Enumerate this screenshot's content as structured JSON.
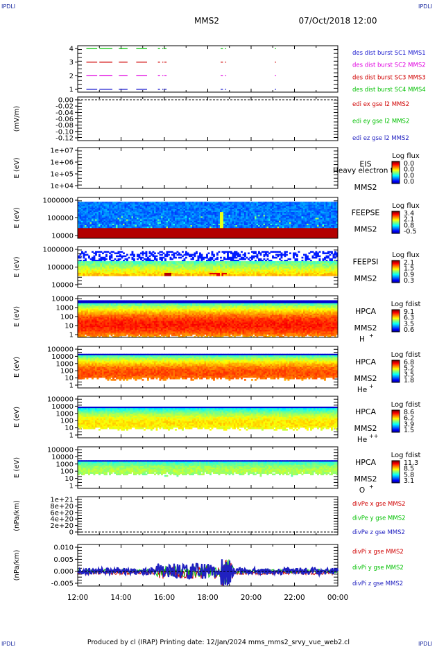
{
  "corner_label": "IPDLI",
  "header": {
    "spacecraft": "MMS2",
    "datetime": "07/Oct/2018 12:00"
  },
  "footer": {
    "text": "Produced by cl (IRAP)   Printing date: 12/Jan/2024   mms_mms2_srvy_vue_web2.cl"
  },
  "x_axis": {
    "ticks": [
      "12:00",
      "14:00",
      "16:00",
      "18:00",
      "20:00",
      "22:00",
      "00:00"
    ]
  },
  "colors": {
    "sc1": "#2020d0",
    "sc2": "#e000e0",
    "sc3": "#d00000",
    "sc4": "#00c000",
    "red": "#d00000",
    "green": "#00c000",
    "blue": "#2020c0"
  },
  "chart_data": [
    {
      "type": "line",
      "id": "burst",
      "ylabel": "",
      "yticks": [
        "4",
        "3",
        "2",
        "1"
      ],
      "series": [
        {
          "name": "des dist burst SC1 MMS1"
        },
        {
          "name": "des dist burst SC2 MMS2"
        },
        {
          "name": "des dist burst SC3 MMS3"
        },
        {
          "name": "des dist burst SC4 MMS4"
        }
      ],
      "segments_hours": [
        [
          0.4,
          0.9
        ],
        [
          1.0,
          1.6
        ],
        [
          1.9,
          2.3
        ],
        [
          2.7,
          3.2
        ],
        [
          3.7,
          3.8
        ],
        [
          3.9,
          3.95
        ],
        [
          4.0,
          4.1
        ],
        [
          6.6,
          6.7
        ],
        [
          6.8,
          6.85
        ],
        [
          9.1,
          9.15
        ]
      ]
    },
    {
      "type": "line",
      "id": "edi",
      "ylabel": "(mV/m)",
      "yticks": [
        "0.00",
        "-0.02",
        "-0.04",
        "-0.06",
        "-0.08",
        "-0.10",
        "-0.12"
      ],
      "series": [
        {
          "name": "edi ex gse l2 MMS2"
        },
        {
          "name": "edi ey gse l2 MMS2"
        },
        {
          "name": "edi ez gse l2 MMS2"
        }
      ]
    },
    {
      "type": "heatmap",
      "id": "eis",
      "ylabel": "E (eV)",
      "yticks": [
        "1e+07",
        "1e+06",
        "1e+05",
        "1e+04"
      ],
      "instrument": [
        "EIS",
        "MMS2"
      ],
      "overlay_text": "Heavy electron to",
      "cbar_title": "Log flux",
      "cbar_ticks": [
        "0.0",
        "0.0",
        "0.0",
        "0.0"
      ]
    },
    {
      "type": "heatmap",
      "id": "feepse",
      "ylabel": "E (eV)",
      "yticks": [
        "1000000",
        "100000",
        "10000"
      ],
      "instrument": [
        "FEEPSE",
        "MMS2"
      ],
      "cbar_title": "Log flux",
      "cbar_ticks": [
        "3.4",
        "2.1",
        "0.8",
        "-0.5"
      ]
    },
    {
      "type": "heatmap",
      "id": "feepsi",
      "ylabel": "E (eV)",
      "yticks": [
        "1000000",
        "100000",
        "10000"
      ],
      "instrument": [
        "FEEPSI",
        "MMS2"
      ],
      "cbar_title": "Log flux",
      "cbar_ticks": [
        "2.1",
        "1.5",
        "0.9",
        "0.3"
      ]
    },
    {
      "type": "heatmap",
      "id": "hpca_h",
      "ylabel": "E (eV)",
      "yticks": [
        "10000",
        "1000",
        "100",
        "10",
        "1"
      ],
      "instrument": [
        "HPCA",
        "MMS2"
      ],
      "species": "H",
      "species_sup": "+",
      "cbar_title": "Log fdist",
      "cbar_ticks": [
        "9.1",
        "6.3",
        "3.5",
        "0.6"
      ]
    },
    {
      "type": "heatmap",
      "id": "hpca_he",
      "ylabel": "E (eV)",
      "yticks": [
        "100000",
        "10000",
        "1000",
        "100",
        "10",
        "1"
      ],
      "instrument": [
        "HPCA",
        "MMS2"
      ],
      "species": "He",
      "species_sup": "+",
      "cbar_title": "Log fdist",
      "cbar_ticks": [
        "6.8",
        "5.2",
        "3.5",
        "1.8"
      ]
    },
    {
      "type": "heatmap",
      "id": "hpca_hepp",
      "ylabel": "E (eV)",
      "yticks": [
        "100000",
        "10000",
        "1000",
        "100",
        "10",
        "1"
      ],
      "instrument": [
        "HPCA",
        "MMS2"
      ],
      "species": "He",
      "species_sup": "++",
      "cbar_title": "Log fdist",
      "cbar_ticks": [
        "8.6",
        "6.2",
        "3.9",
        "1.5"
      ]
    },
    {
      "type": "heatmap",
      "id": "hpca_o",
      "ylabel": "E (eV)",
      "yticks": [
        "100000",
        "10000",
        "1000",
        "100",
        "10",
        "1"
      ],
      "instrument": [
        "HPCA",
        "MMS2"
      ],
      "species": "O",
      "species_sup": "+",
      "cbar_title": "Log fdist",
      "cbar_ticks": [
        "11.3",
        "8.5",
        "5.8",
        "3.1"
      ]
    },
    {
      "type": "line",
      "id": "divpe",
      "ylabel": "(nPa/km)",
      "yticks": [
        "1e+21",
        "8e+20",
        "6e+20",
        "4e+20",
        "2e+20",
        "0"
      ],
      "series": [
        {
          "name": "divPe x gse MMS2"
        },
        {
          "name": "divPe y gse MMS2"
        },
        {
          "name": "divPe z gse MMS2"
        }
      ]
    },
    {
      "type": "line",
      "id": "divpi",
      "ylabel": "(nPa/km)",
      "yticks": [
        "0.010",
        "0.005",
        "0.000",
        "-0.005"
      ],
      "series": [
        {
          "name": "divPi x gse MMS2"
        },
        {
          "name": "divPi y gse MMS2"
        },
        {
          "name": "divPi z gse MMS2"
        }
      ]
    }
  ]
}
